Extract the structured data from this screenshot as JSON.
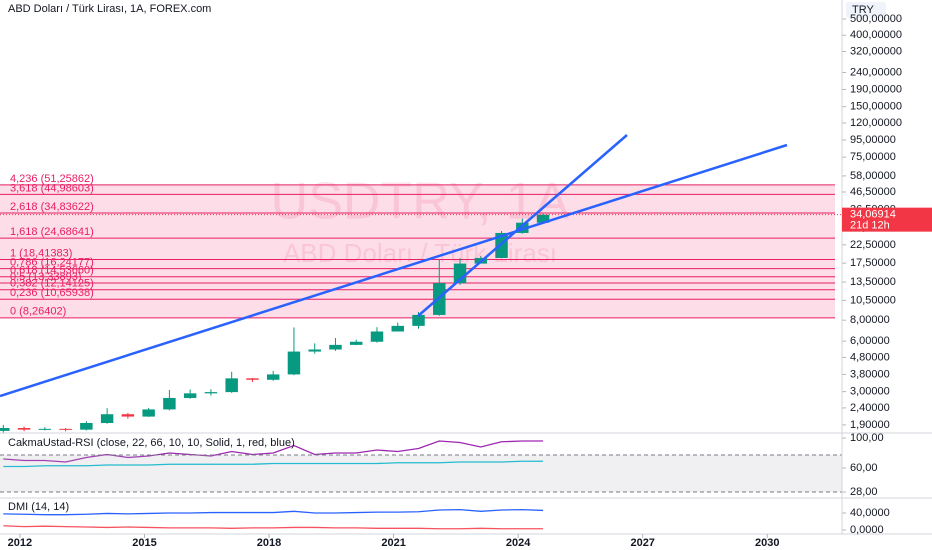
{
  "chart_data": [
    {
      "type": "candlestick",
      "title": "ABD Doları / Türk Lirası, 1A, FOREX.com",
      "watermark": "USDTRY, 1A",
      "watermark_subtitle": "ABD Doları / Türk Lirası",
      "currency": "TRY",
      "log_scale": true,
      "up_color": "#089981",
      "down_color": "#f23645",
      "x": [
        2011.6,
        2012.1,
        2012.6,
        2013.1,
        2013.6,
        2014.1,
        2014.6,
        2015.1,
        2015.6,
        2016.1,
        2016.6,
        2017.1,
        2017.6,
        2018.1,
        2018.6,
        2019.1,
        2019.6,
        2020.1,
        2020.6,
        2021.1,
        2021.6,
        2022.1,
        2022.6,
        2023.1,
        2023.6,
        2024.1,
        2024.6
      ],
      "open": [
        1.75,
        1.82,
        1.78,
        1.8,
        1.78,
        1.95,
        2.2,
        2.13,
        2.35,
        2.75,
        2.93,
        2.98,
        3.6,
        3.53,
        3.8,
        5.2,
        5.35,
        5.7,
        5.95,
        6.85,
        7.4,
        8.6,
        13.3,
        17.4,
        18.8,
        26.5,
        30.5
      ],
      "high": [
        1.9,
        1.86,
        1.84,
        1.82,
        2.0,
        2.39,
        2.24,
        2.4,
        3.07,
        3.09,
        3.1,
        3.94,
        3.62,
        3.99,
        7.24,
        5.82,
        6.26,
        6.12,
        7.27,
        7.74,
        8.96,
        18.36,
        18.72,
        19.3,
        27.2,
        32.3,
        34.5
      ],
      "low": [
        1.7,
        1.74,
        1.76,
        1.74,
        1.76,
        1.93,
        2.07,
        2.12,
        2.32,
        2.72,
        2.84,
        2.95,
        3.42,
        3.48,
        3.76,
        5.05,
        5.25,
        5.68,
        5.88,
        6.86,
        7.12,
        8.5,
        13.0,
        17.5,
        18.7,
        26.2,
        30.0
      ],
      "close": [
        1.82,
        1.78,
        1.8,
        1.78,
        1.95,
        2.2,
        2.13,
        2.35,
        2.75,
        2.93,
        2.98,
        3.6,
        3.53,
        3.8,
        5.2,
        5.35,
        5.7,
        5.95,
        6.85,
        7.4,
        8.6,
        13.3,
        17.4,
        18.8,
        26.5,
        30.5,
        34.06914
      ],
      "price_label": {
        "value": 34.06914,
        "label": "34,06914"
      },
      "countdown": "21d 12h",
      "xlim": [
        2011.52,
        2031.8
      ],
      "xticks": [
        2012,
        2015,
        2018,
        2021,
        2024,
        2027,
        2030
      ],
      "ylim": [
        1.7,
        649
      ],
      "yticks": [
        {
          "value": 500,
          "label": "500,00000"
        },
        {
          "value": 400,
          "label": "400,00000"
        },
        {
          "value": 320,
          "label": "320,00000"
        },
        {
          "value": 240,
          "label": "240,00000"
        },
        {
          "value": 190,
          "label": "190,00000"
        },
        {
          "value": 150,
          "label": "150,00000"
        },
        {
          "value": 120,
          "label": "120,00000"
        },
        {
          "value": 95,
          "label": "95,00000"
        },
        {
          "value": 75,
          "label": "75,00000"
        },
        {
          "value": 58,
          "label": "58,00000"
        },
        {
          "value": 46.5,
          "label": "46,50000"
        },
        {
          "value": 36.5,
          "label": "36,50000"
        },
        {
          "value": 28.5,
          "label": "28,50000"
        },
        {
          "value": 22.5,
          "label": "22,50000"
        },
        {
          "value": 17.5,
          "label": "17,50000"
        },
        {
          "value": 13.5,
          "label": "13,50000"
        },
        {
          "value": 10.5,
          "label": "10,50000"
        },
        {
          "value": 8,
          "label": "8,00000"
        },
        {
          "value": 6,
          "label": "6,00000"
        },
        {
          "value": 4.8,
          "label": "4,80000"
        },
        {
          "value": 3.8,
          "label": "3,80000"
        },
        {
          "value": 3,
          "label": "3,00000"
        },
        {
          "value": 2.4,
          "label": "2,40000"
        },
        {
          "value": 1.9,
          "label": "1,90000"
        }
      ],
      "fib_color": "#e91e63",
      "fib_levels": [
        {
          "label": "4,236 (51,25862)",
          "value": 51.25862
        },
        {
          "label": "3,618 (44,98603)",
          "value": 44.98603
        },
        {
          "label": "2,618 (34,83622)",
          "value": 34.83622
        },
        {
          "label": "1,618 (24,68641)",
          "value": 24.68641
        },
        {
          "label": "1 (18,41383)",
          "value": 18.41383
        },
        {
          "label": "0,786 (16,24177)",
          "value": 16.24177
        },
        {
          "label": "0,618 (14,53660)",
          "value": 14.5366
        },
        {
          "label": "0,5 (13,33893)",
          "value": 13.33893
        },
        {
          "label": "0,382 (12,14125)",
          "value": 12.14125
        },
        {
          "label": "0,236 (10,65938)",
          "value": 10.65938
        },
        {
          "label": "0 (8,26402)",
          "value": 8.26402
        }
      ]
    },
    {
      "type": "line",
      "title": "CakmaUstad-RSI (close, 22, 66, 10, 10, Solid, 1, red, blue)",
      "x": [
        2011.6,
        2012.1,
        2012.6,
        2013.1,
        2013.6,
        2014.1,
        2014.6,
        2015.1,
        2015.6,
        2016.1,
        2016.6,
        2017.1,
        2017.6,
        2018.1,
        2018.6,
        2019.1,
        2019.6,
        2020.1,
        2020.6,
        2021.1,
        2021.6,
        2022.1,
        2022.6,
        2023.1,
        2023.6,
        2024.1,
        2024.6
      ],
      "series": [
        {
          "color": "#9c27b0",
          "values": [
            72,
            70,
            70,
            68,
            74,
            78,
            74,
            76,
            80,
            78,
            76,
            82,
            78,
            80,
            90,
            78,
            80,
            80,
            84,
            82,
            86,
            96,
            94,
            88,
            95,
            96,
            96
          ]
        },
        {
          "color": "#00bcd4",
          "values": [
            62,
            62,
            63,
            63,
            63,
            64,
            64,
            64,
            65,
            65,
            65,
            65,
            65,
            66,
            66,
            66,
            66,
            66,
            66,
            67,
            67,
            67,
            68,
            68,
            68,
            69,
            69
          ]
        }
      ],
      "xlim": [
        2011.52,
        2031.8
      ],
      "ylim": [
        20,
        106.7
      ],
      "yticks": [
        {
          "value": 100,
          "label": "100,00"
        },
        {
          "value": 60,
          "label": "60,00"
        },
        {
          "value": 28,
          "label": "28,00"
        }
      ]
    },
    {
      "type": "line",
      "title": "DMI (14, 14)",
      "x": [
        2011.6,
        2012.1,
        2012.6,
        2013.1,
        2013.6,
        2014.1,
        2014.6,
        2015.1,
        2015.6,
        2016.1,
        2016.6,
        2017.1,
        2017.6,
        2018.1,
        2018.6,
        2019.1,
        2019.6,
        2020.1,
        2020.6,
        2021.1,
        2021.6,
        2022.1,
        2022.6,
        2023.1,
        2023.6,
        2024.1,
        2024.6
      ],
      "series": [
        {
          "color": "#2962ff",
          "values": [
            38,
            37,
            36,
            36,
            37,
            39,
            38,
            39,
            40,
            40,
            41,
            41,
            41,
            41,
            44,
            40,
            40,
            41,
            42,
            42,
            43,
            47,
            48,
            44,
            47,
            48,
            46
          ]
        },
        {
          "color": "#f7525f",
          "values": [
            10,
            8,
            9,
            8,
            7,
            6,
            7,
            6,
            5,
            5,
            5,
            4,
            5,
            5,
            6,
            6,
            5,
            5,
            4,
            4,
            4,
            3,
            3,
            4,
            3,
            3,
            3
          ]
        }
      ],
      "xlim": [
        2011.52,
        2031.8
      ],
      "ylim": [
        -9.4,
        75.3
      ],
      "yticks": [
        {
          "value": 40,
          "label": "40,0000"
        },
        {
          "value": 0,
          "label": "0,0000"
        }
      ]
    }
  ]
}
